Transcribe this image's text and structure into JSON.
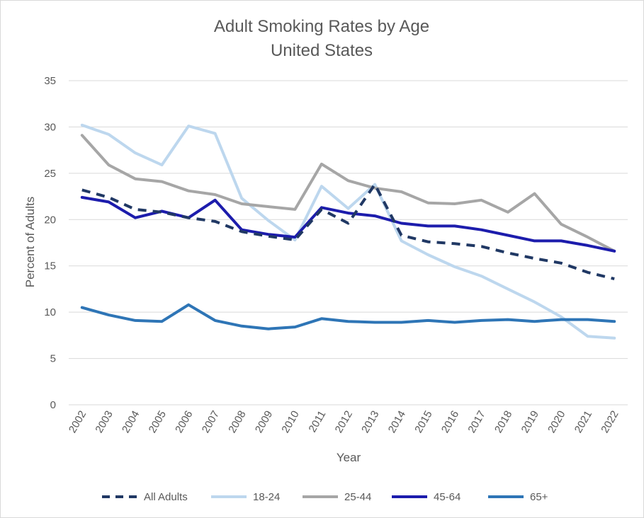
{
  "chart_data": {
    "type": "line",
    "title": "Adult Smoking Rates by Age",
    "subtitle": "United States",
    "xlabel": "Year",
    "ylabel": "Percent of Adults",
    "ylim": [
      0,
      35
    ],
    "yticks": [
      0,
      5,
      10,
      15,
      20,
      25,
      30,
      35
    ],
    "grid": true,
    "legend_position": "bottom",
    "categories": [
      "2002",
      "2003",
      "2004",
      "2005",
      "2006",
      "2007",
      "2008",
      "2009",
      "2010",
      "2011",
      "2012",
      "2013",
      "2014",
      "2015",
      "2016",
      "2017",
      "2018",
      "2019",
      "2020",
      "2021",
      "2022"
    ],
    "series": [
      {
        "name": "All Adults",
        "color": "#203864",
        "style": "dashed",
        "values": [
          23.2,
          22.4,
          21.1,
          20.8,
          20.2,
          19.8,
          18.7,
          18.2,
          17.8,
          21.1,
          19.6,
          23.8,
          18.3,
          17.6,
          17.4,
          17.1,
          16.4,
          15.8,
          15.3,
          14.3,
          13.6
        ]
      },
      {
        "name": "18-24",
        "color": "#bdd7ee",
        "style": "solid",
        "values": [
          30.2,
          29.2,
          27.2,
          25.9,
          30.1,
          29.3,
          22.3,
          19.9,
          17.8,
          23.6,
          21.2,
          23.8,
          17.7,
          16.2,
          14.9,
          13.9,
          12.5,
          11.1,
          9.5,
          7.4,
          7.2
        ]
      },
      {
        "name": "25-44",
        "color": "#a6a6a6",
        "style": "solid",
        "values": [
          29.1,
          25.9,
          24.4,
          24.1,
          23.1,
          22.7,
          21.7,
          21.4,
          21.1,
          26.0,
          24.2,
          23.4,
          23.0,
          21.8,
          21.7,
          22.1,
          20.8,
          22.8,
          19.5,
          18.1,
          16.6
        ]
      },
      {
        "name": "45-64",
        "color": "#1c1cac",
        "style": "solid",
        "values": [
          22.4,
          21.9,
          20.2,
          20.9,
          20.2,
          22.1,
          18.9,
          18.4,
          18.1,
          21.3,
          20.7,
          20.4,
          19.6,
          19.3,
          19.3,
          18.9,
          18.3,
          17.7,
          17.7,
          17.2,
          16.6
        ]
      },
      {
        "name": "65+",
        "color": "#2e75b6",
        "style": "solid",
        "values": [
          10.5,
          9.7,
          9.1,
          9.0,
          10.8,
          9.1,
          8.5,
          8.2,
          8.4,
          9.3,
          9.0,
          8.9,
          8.9,
          9.1,
          8.9,
          9.1,
          9.2,
          9.0,
          9.2,
          9.2,
          9.0
        ]
      }
    ]
  }
}
